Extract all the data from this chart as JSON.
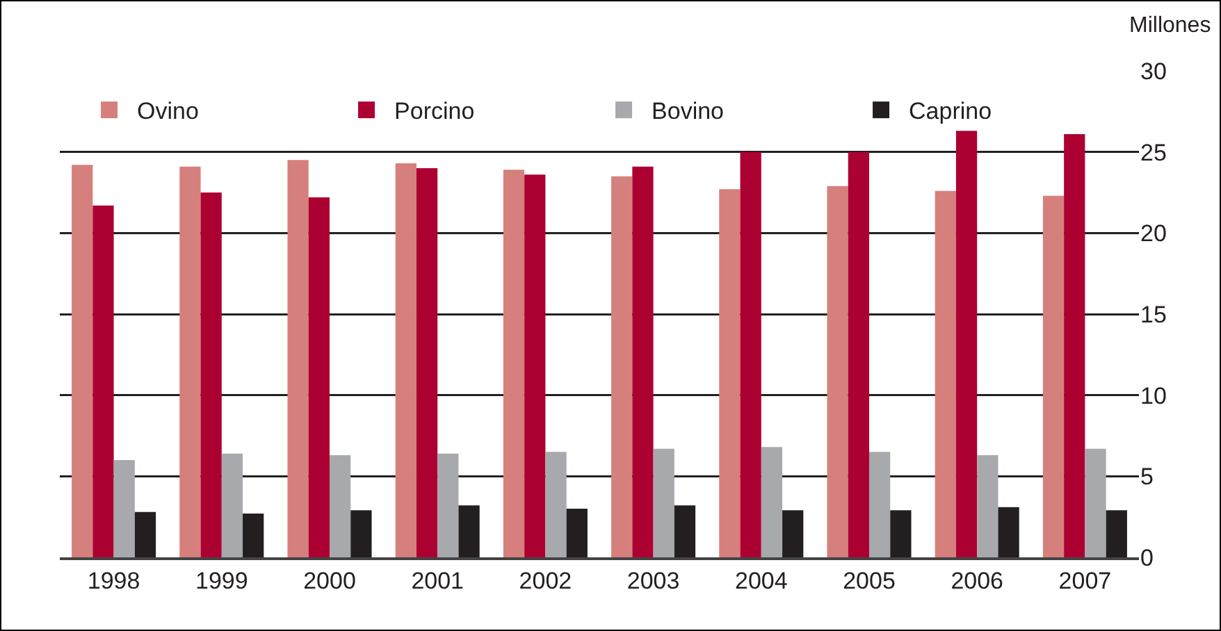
{
  "chart_data": {
    "type": "bar",
    "ylabel": "Millones",
    "categories": [
      "1998",
      "1999",
      "2000",
      "2001",
      "2002",
      "2003",
      "2004",
      "2005",
      "2006",
      "2007"
    ],
    "series": [
      {
        "name": "Ovino",
        "color": "#d5807c",
        "values": [
          24.2,
          24.1,
          24.5,
          24.3,
          23.9,
          23.5,
          22.7,
          22.9,
          22.6,
          22.3
        ]
      },
      {
        "name": "Porcino",
        "color": "#ad0032",
        "values": [
          21.7,
          22.5,
          22.2,
          24.0,
          23.6,
          24.1,
          25.0,
          25.0,
          26.3,
          26.1
        ]
      },
      {
        "name": "Bovino",
        "color": "#a7a9ac",
        "values": [
          6.0,
          6.4,
          6.3,
          6.4,
          6.5,
          6.7,
          6.8,
          6.5,
          6.3,
          6.7
        ]
      },
      {
        "name": "Caprino",
        "color": "#231f20",
        "values": [
          2.8,
          2.7,
          2.9,
          3.2,
          3.0,
          3.2,
          2.9,
          2.9,
          3.1,
          2.9
        ]
      }
    ],
    "ylim": [
      0,
      30
    ],
    "yticks": [
      0,
      5,
      10,
      15,
      20,
      25,
      30
    ],
    "grid": "y",
    "legend": "top left"
  }
}
